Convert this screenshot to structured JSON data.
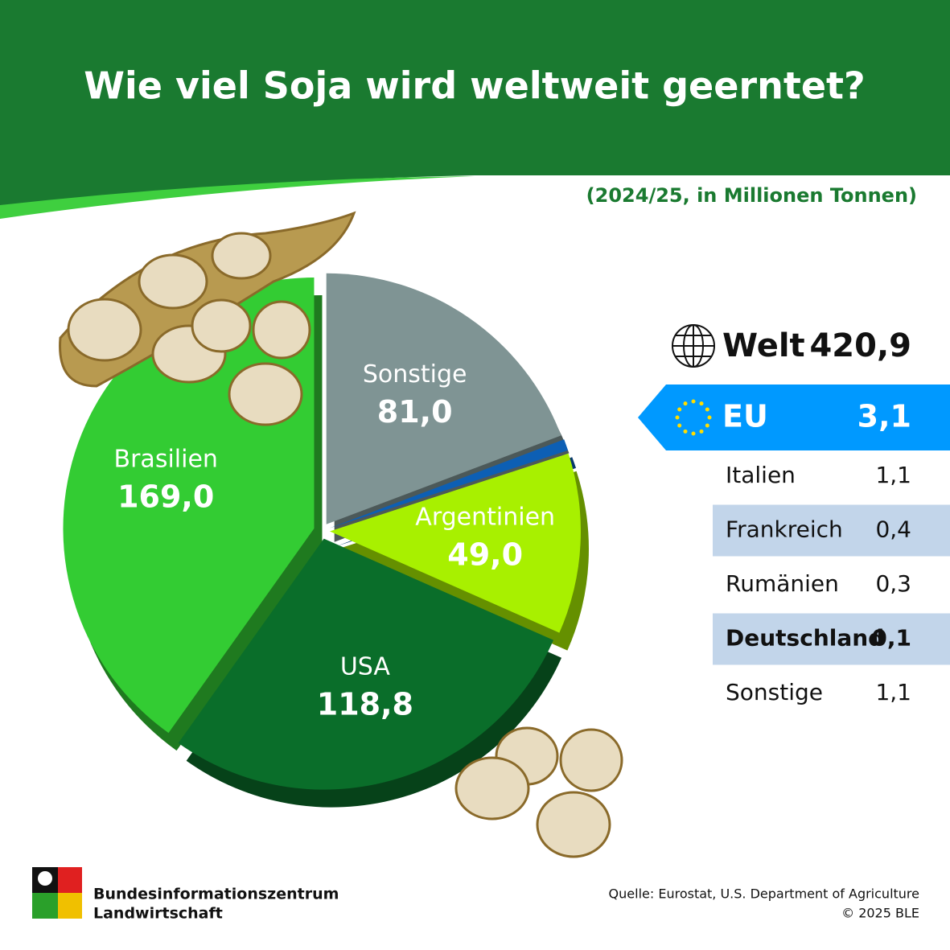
{
  "chart_data": {
    "type": "pie",
    "title": "Wie viel Soja wird weltweit geerntet?",
    "subtitle": "(2024/25, in Millionen Tonnen)",
    "categories": [
      "Sonstige",
      "EU",
      "Argentinien",
      "USA",
      "Brasilien"
    ],
    "values": [
      81.0,
      3.1,
      49.0,
      118.8,
      169.0
    ],
    "value_labels": [
      "81,0",
      "3,1",
      "49,0",
      "118,8",
      "169,0"
    ],
    "colors": [
      "#7f9494",
      "#0d5fb4",
      "#a8f000",
      "#0a6e2a",
      "#33cc33"
    ],
    "total": {
      "name": "Welt",
      "value": 420.9,
      "label": "420,9"
    },
    "eu_rows": [
      [
        "Italien",
        "1,1"
      ],
      [
        "Frankreich",
        "0,4"
      ],
      [
        "Rumänien",
        "0,3"
      ],
      [
        "Deutschland",
        "0,1"
      ],
      [
        "Sonstige",
        "1,1"
      ]
    ]
  },
  "footer": {
    "org": [
      "Bundesinformationszentrum",
      "Landwirtschaft"
    ],
    "source": "Quelle: Eurostat, U.S. Department of Agriculture",
    "copyright": "© 2025 BLE"
  }
}
